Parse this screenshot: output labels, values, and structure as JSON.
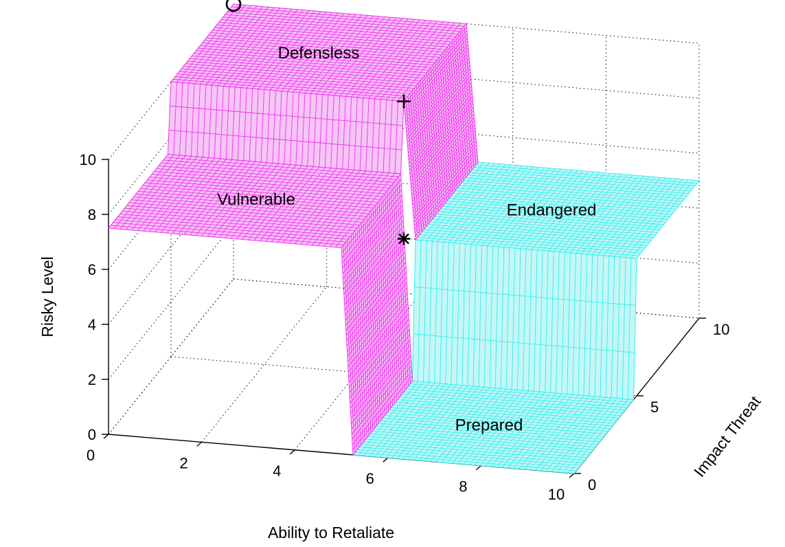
{
  "chart_data": {
    "type": "surface3d",
    "xlabel": "Ability to Retaliate",
    "ylabel": "Impact Threat",
    "zlabel": "Risky Level",
    "xlim": [
      0,
      10
    ],
    "ylim": [
      0,
      10
    ],
    "zlim": [
      0,
      10
    ],
    "x_ticks": [
      "0",
      "2",
      "4",
      "6",
      "8",
      "10"
    ],
    "y_ticks": [
      "0",
      "5",
      "10"
    ],
    "z_ticks": [
      "0",
      "2",
      "4",
      "6",
      "8",
      "10"
    ],
    "grid": true,
    "colors": {
      "high": "#ee33ee",
      "low": "#33eeee",
      "high_fill": "#f7c4f7",
      "low_fill": "#c4f7f7"
    },
    "regions": [
      {
        "name": "Defensless",
        "x_range": [
          0,
          5
        ],
        "y_range": [
          5,
          10
        ],
        "z": 10
      },
      {
        "name": "Vulnerable",
        "x_range": [
          0,
          5
        ],
        "y_range": [
          0,
          5
        ],
        "z": 7.5
      },
      {
        "name": "Endangered",
        "x_range": [
          5,
          10
        ],
        "y_range": [
          5,
          10
        ],
        "z": 5
      },
      {
        "name": "Prepared",
        "x_range": [
          5,
          10
        ],
        "y_range": [
          0,
          5
        ],
        "z": 0
      }
    ],
    "markers": [
      {
        "symbol": "o",
        "x": 0,
        "y": 10,
        "z": 10
      },
      {
        "symbol": "+",
        "x": 5,
        "y": 5,
        "z": 10
      },
      {
        "symbol": "*",
        "x": 5,
        "y": 5,
        "z": 5
      }
    ]
  }
}
